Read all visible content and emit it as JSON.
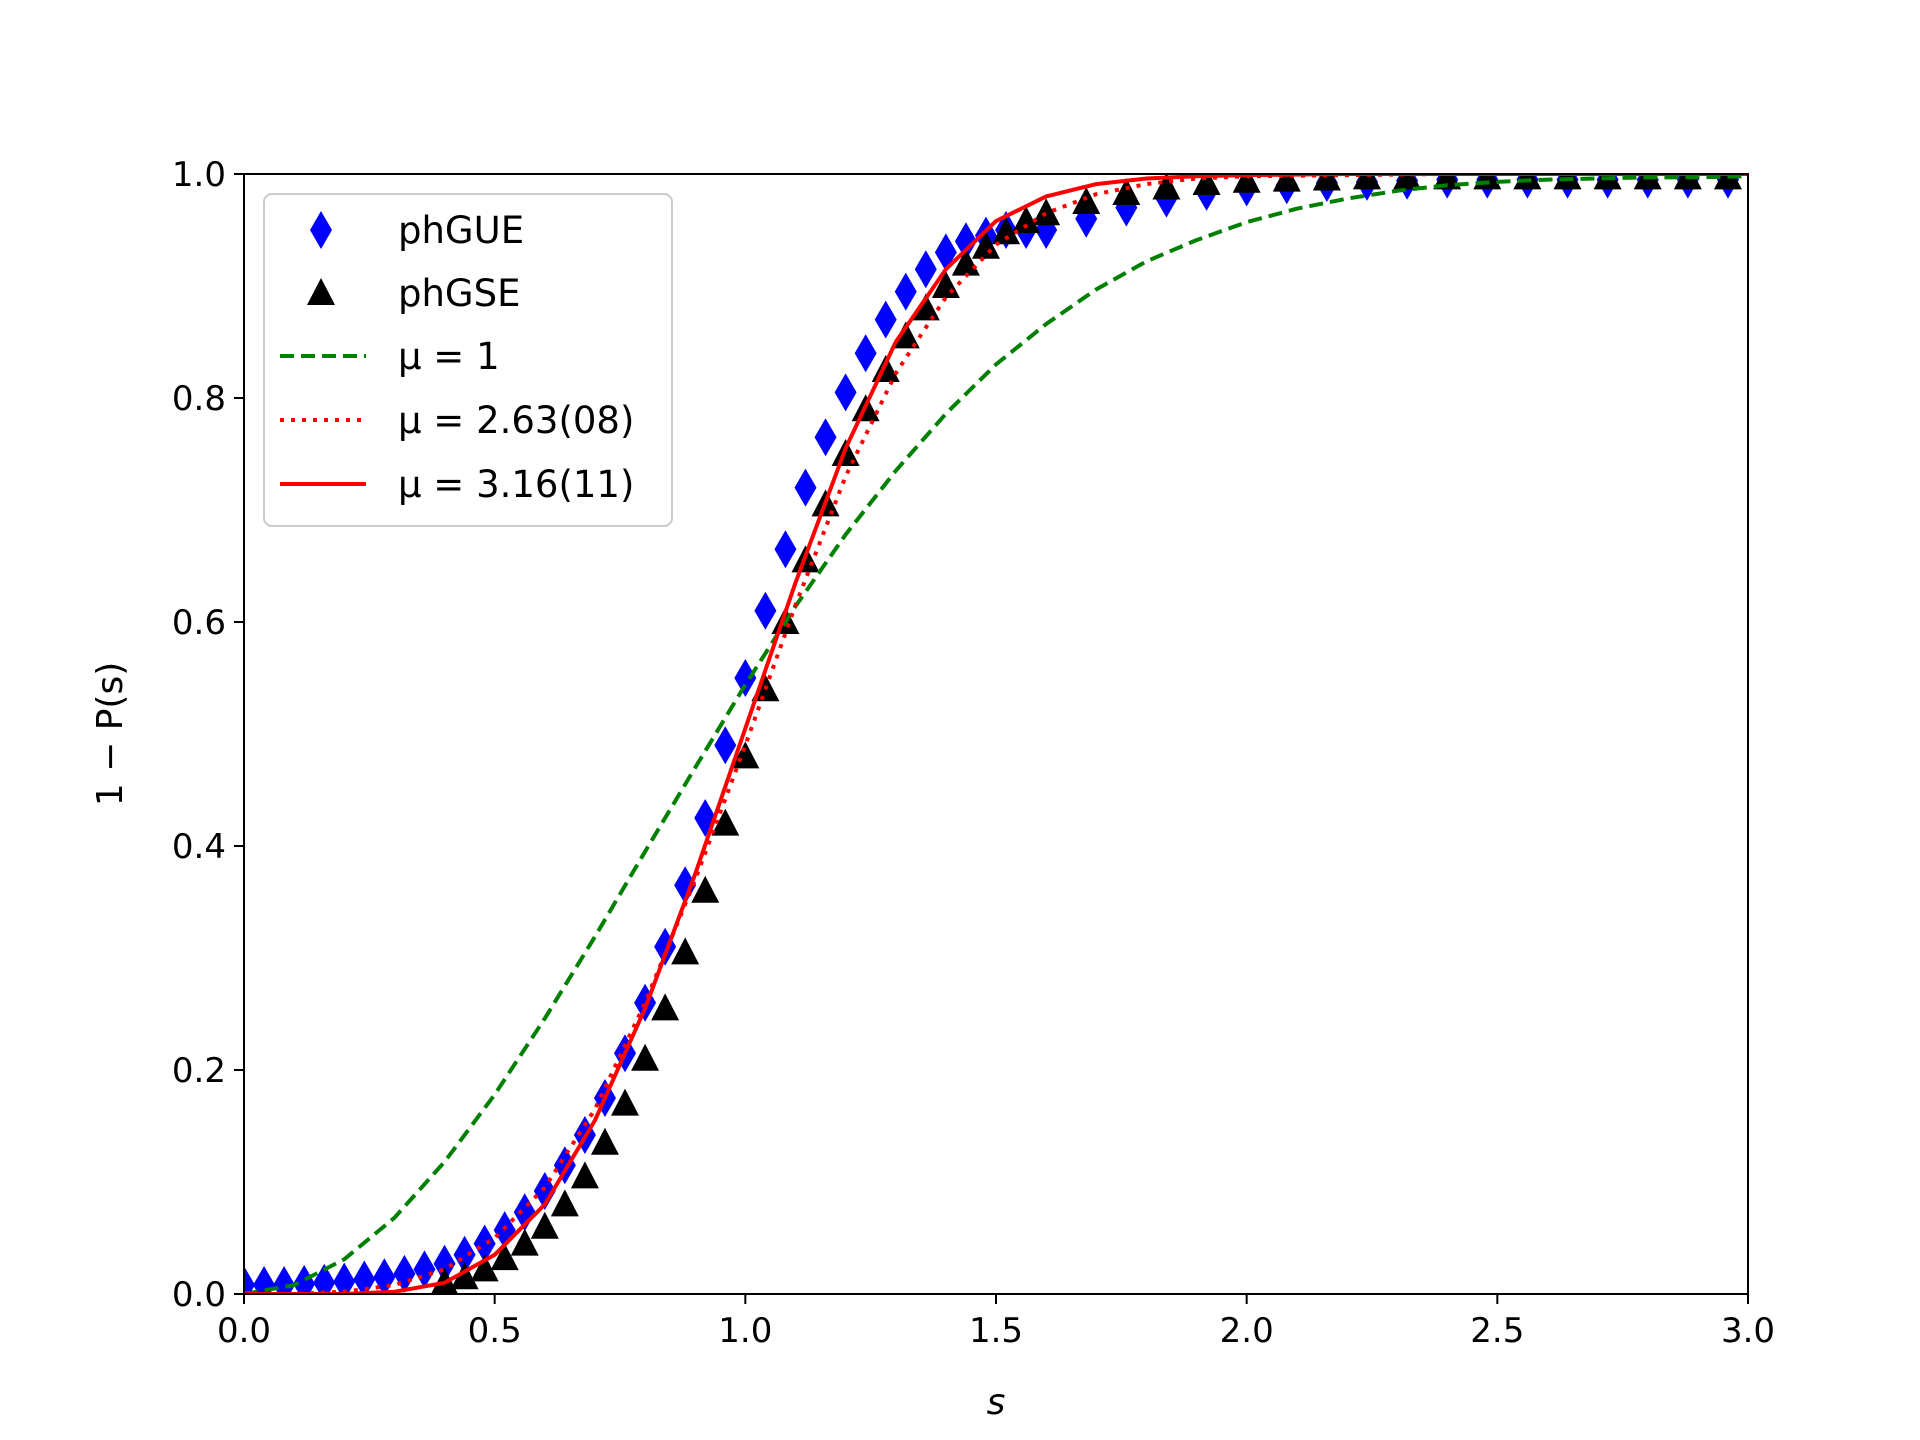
{
  "chart_data": {
    "type": "scatter",
    "xlabel": "s",
    "ylabel": "1 − P(s)",
    "xlim": [
      0.0,
      3.0
    ],
    "ylim": [
      0.0,
      1.0
    ],
    "xticks": [
      "0.0",
      "0.5",
      "1.0",
      "1.5",
      "2.0",
      "2.5",
      "3.0"
    ],
    "yticks": [
      "0.0",
      "0.2",
      "0.4",
      "0.6",
      "0.8",
      "1.0"
    ],
    "grid": false,
    "legend_position": "upper-left",
    "series": [
      {
        "name": "phGUE",
        "kind": "scatter",
        "marker": "diamond",
        "color": "#0000ff",
        "x": [
          0.0,
          0.04,
          0.08,
          0.12,
          0.16,
          0.2,
          0.24,
          0.28,
          0.32,
          0.36,
          0.4,
          0.44,
          0.48,
          0.52,
          0.56,
          0.6,
          0.64,
          0.68,
          0.72,
          0.76,
          0.8,
          0.84,
          0.88,
          0.92,
          0.96,
          1.0,
          1.04,
          1.08,
          1.12,
          1.16,
          1.2,
          1.24,
          1.28,
          1.32,
          1.36,
          1.4,
          1.44,
          1.48,
          1.52,
          1.56,
          1.6,
          1.68,
          1.76,
          1.84,
          1.92,
          2.0,
          2.08,
          2.16,
          2.24,
          2.32,
          2.4,
          2.48,
          2.56,
          2.64,
          2.72,
          2.8,
          2.88,
          2.96
        ],
        "y": [
          0.008,
          0.008,
          0.008,
          0.009,
          0.01,
          0.011,
          0.013,
          0.015,
          0.018,
          0.022,
          0.027,
          0.035,
          0.045,
          0.057,
          0.073,
          0.092,
          0.115,
          0.142,
          0.175,
          0.215,
          0.26,
          0.31,
          0.365,
          0.425,
          0.49,
          0.55,
          0.61,
          0.665,
          0.72,
          0.765,
          0.805,
          0.84,
          0.87,
          0.895,
          0.915,
          0.93,
          0.94,
          0.945,
          0.95,
          0.95,
          0.95,
          0.96,
          0.97,
          0.978,
          0.984,
          0.988,
          0.99,
          0.992,
          0.993,
          0.994,
          0.995,
          0.995,
          0.995,
          0.995,
          0.995,
          0.995,
          0.995,
          0.995
        ]
      },
      {
        "name": "phGSE",
        "kind": "scatter",
        "marker": "triangle",
        "color": "#000000",
        "x": [
          0.4,
          0.44,
          0.48,
          0.52,
          0.56,
          0.6,
          0.64,
          0.68,
          0.72,
          0.76,
          0.8,
          0.84,
          0.88,
          0.92,
          0.96,
          1.0,
          1.04,
          1.08,
          1.12,
          1.16,
          1.2,
          1.24,
          1.28,
          1.32,
          1.36,
          1.4,
          1.44,
          1.48,
          1.52,
          1.56,
          1.6,
          1.68,
          1.76,
          1.84,
          1.92,
          2.0,
          2.08,
          2.16,
          2.24,
          2.32,
          2.4,
          2.48,
          2.56,
          2.64,
          2.72,
          2.8,
          2.88,
          2.96
        ],
        "y": [
          0.01,
          0.015,
          0.022,
          0.032,
          0.045,
          0.06,
          0.08,
          0.105,
          0.135,
          0.17,
          0.21,
          0.255,
          0.305,
          0.36,
          0.42,
          0.48,
          0.54,
          0.6,
          0.655,
          0.705,
          0.75,
          0.79,
          0.825,
          0.855,
          0.88,
          0.9,
          0.92,
          0.935,
          0.948,
          0.958,
          0.965,
          0.975,
          0.983,
          0.988,
          0.992,
          0.994,
          0.995,
          0.996,
          0.997,
          0.997,
          0.997,
          0.997,
          0.997,
          0.997,
          0.997,
          0.997,
          0.997,
          0.997
        ]
      },
      {
        "name": "μ = 1",
        "kind": "line",
        "style": "dashed",
        "color": "#008000",
        "x": [
          0.0,
          0.1,
          0.2,
          0.3,
          0.4,
          0.5,
          0.6,
          0.7,
          0.8,
          0.9,
          1.0,
          1.1,
          1.2,
          1.3,
          1.4,
          1.5,
          1.6,
          1.7,
          1.8,
          1.9,
          2.0,
          2.1,
          2.2,
          2.3,
          2.4,
          2.5,
          2.6,
          2.7,
          2.8,
          2.9,
          3.0
        ],
        "y": [
          0.0,
          0.008,
          0.031,
          0.068,
          0.118,
          0.178,
          0.246,
          0.319,
          0.395,
          0.47,
          0.544,
          0.614,
          0.678,
          0.735,
          0.786,
          0.83,
          0.866,
          0.897,
          0.922,
          0.941,
          0.957,
          0.969,
          0.978,
          0.985,
          0.99,
          0.993,
          0.995,
          0.996,
          0.997,
          0.997,
          0.998
        ]
      },
      {
        "name": "μ = 2.63(08)",
        "kind": "line",
        "style": "dotted",
        "color": "#ff0000",
        "x": [
          0.0,
          0.1,
          0.2,
          0.3,
          0.4,
          0.5,
          0.6,
          0.7,
          0.8,
          0.9,
          1.0,
          1.1,
          1.2,
          1.3,
          1.4,
          1.5,
          1.6,
          1.7,
          1.8,
          1.9,
          2.0,
          2.2,
          2.4,
          2.6,
          2.8,
          3.0
        ],
        "y": [
          0.0,
          0.0,
          0.002,
          0.008,
          0.022,
          0.05,
          0.095,
          0.165,
          0.26,
          0.37,
          0.49,
          0.615,
          0.73,
          0.822,
          0.89,
          0.937,
          0.965,
          0.982,
          0.991,
          0.996,
          0.998,
          0.999,
          1.0,
          1.0,
          1.0,
          1.0
        ]
      },
      {
        "name": "μ = 3.16(11)",
        "kind": "line",
        "style": "solid",
        "color": "#ff0000",
        "x": [
          0.0,
          0.1,
          0.2,
          0.3,
          0.4,
          0.5,
          0.6,
          0.7,
          0.8,
          0.9,
          1.0,
          1.1,
          1.2,
          1.3,
          1.4,
          1.5,
          1.6,
          1.7,
          1.8,
          1.9,
          2.0,
          2.2,
          2.4,
          2.6,
          2.8,
          3.0
        ],
        "y": [
          0.0,
          0.0,
          0.0,
          0.002,
          0.01,
          0.035,
          0.08,
          0.155,
          0.255,
          0.375,
          0.505,
          0.635,
          0.755,
          0.85,
          0.915,
          0.958,
          0.98,
          0.991,
          0.996,
          0.998,
          0.999,
          1.0,
          1.0,
          1.0,
          1.0,
          1.0
        ]
      }
    ]
  }
}
